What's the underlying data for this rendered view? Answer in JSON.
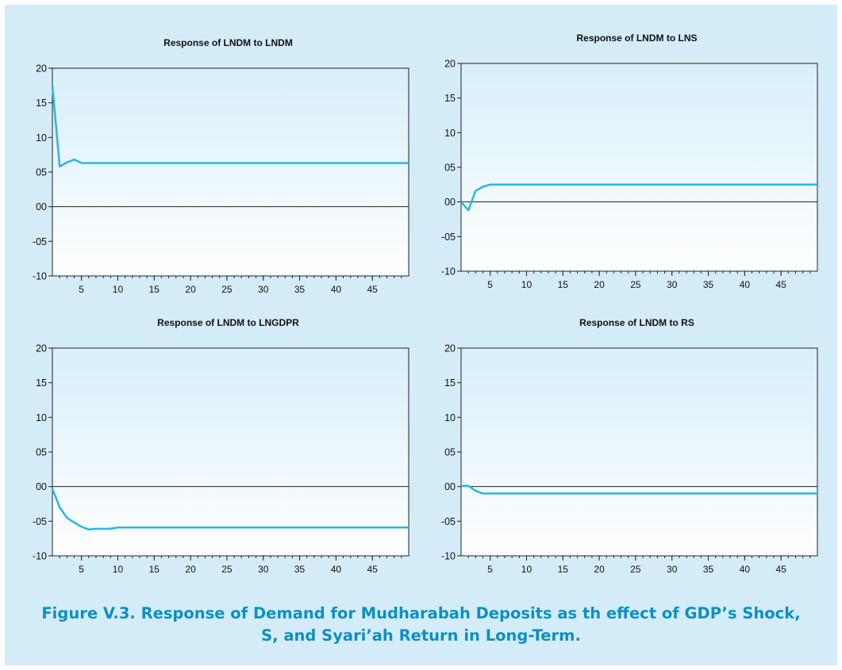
{
  "figure": {
    "caption_line1": "Figure V.3. Response of Demand for Mudharabah Deposits as th effect of GDP’s Shock,",
    "caption_line2": "S, and Syari’ah Return in Long-Term."
  },
  "colors": {
    "background": "#d3ecf8",
    "line": "#29b6e8",
    "caption": "#0d8fc4"
  },
  "chart_data": [
    {
      "type": "line",
      "title": "Response of LNDM to LNDM",
      "xlabel": "",
      "ylabel": "",
      "xlim": [
        1,
        50
      ],
      "ylim": [
        -10,
        20
      ],
      "y_ticks": [
        20,
        15,
        10,
        5,
        0,
        -5,
        -10
      ],
      "y_tick_labels": [
        "20",
        "15",
        "10",
        "05",
        "00",
        "-05",
        "-10"
      ],
      "x_ticks": [
        5,
        10,
        15,
        20,
        25,
        30,
        35,
        40,
        45
      ],
      "zero_line": true,
      "series": [
        {
          "x": [
            1,
            2,
            3,
            4,
            5,
            6,
            7,
            8,
            9,
            10,
            50
          ],
          "y": [
            17.5,
            5.8,
            6.4,
            6.8,
            6.3,
            6.3,
            6.3,
            6.3,
            6.3,
            6.3,
            6.3
          ]
        }
      ]
    },
    {
      "type": "line",
      "title": "Response of LNDM to LNS",
      "xlabel": "",
      "ylabel": "",
      "xlim": [
        1,
        50
      ],
      "ylim": [
        -10,
        20
      ],
      "y_ticks": [
        20,
        15,
        10,
        5,
        0,
        -5,
        -10
      ],
      "y_tick_labels": [
        "20",
        "15",
        "10",
        "05",
        "00",
        "-05",
        "-10"
      ],
      "x_ticks": [
        5,
        10,
        15,
        20,
        25,
        30,
        35,
        40,
        45
      ],
      "zero_line": true,
      "series": [
        {
          "x": [
            1,
            2,
            3,
            4,
            5,
            6,
            7,
            50
          ],
          "y": [
            0.0,
            -1.2,
            1.6,
            2.2,
            2.5,
            2.5,
            2.5,
            2.5
          ]
        }
      ]
    },
    {
      "type": "line",
      "title": "Response of LNDM to LNGDPR",
      "xlabel": "",
      "ylabel": "",
      "xlim": [
        1,
        50
      ],
      "ylim": [
        -10,
        20
      ],
      "y_ticks": [
        20,
        15,
        10,
        5,
        0,
        -5,
        -10
      ],
      "y_tick_labels": [
        "20",
        "15",
        "10",
        "05",
        "00",
        "-05",
        "-10"
      ],
      "x_ticks": [
        5,
        10,
        15,
        20,
        25,
        30,
        35,
        40,
        45
      ],
      "zero_line": true,
      "series": [
        {
          "x": [
            1,
            2,
            3,
            4,
            5,
            6,
            7,
            8,
            9,
            10,
            50
          ],
          "y": [
            -0.3,
            -3.0,
            -4.5,
            -5.2,
            -5.8,
            -6.2,
            -6.1,
            -6.1,
            -6.1,
            -5.9,
            -5.9
          ]
        }
      ]
    },
    {
      "type": "line",
      "title": "Response of LNDM to RS",
      "xlabel": "",
      "ylabel": "",
      "xlim": [
        1,
        50
      ],
      "ylim": [
        -10,
        20
      ],
      "y_ticks": [
        20,
        15,
        10,
        5,
        0,
        -5,
        -10
      ],
      "y_tick_labels": [
        "20",
        "15",
        "10",
        "05",
        "00",
        "-05",
        "-10"
      ],
      "x_ticks": [
        5,
        10,
        15,
        20,
        25,
        30,
        35,
        40,
        45
      ],
      "zero_line": true,
      "series": [
        {
          "x": [
            1,
            2,
            3,
            4,
            5,
            50
          ],
          "y": [
            0.1,
            0.1,
            -0.6,
            -1.0,
            -1.0,
            -1.0
          ]
        }
      ]
    }
  ]
}
